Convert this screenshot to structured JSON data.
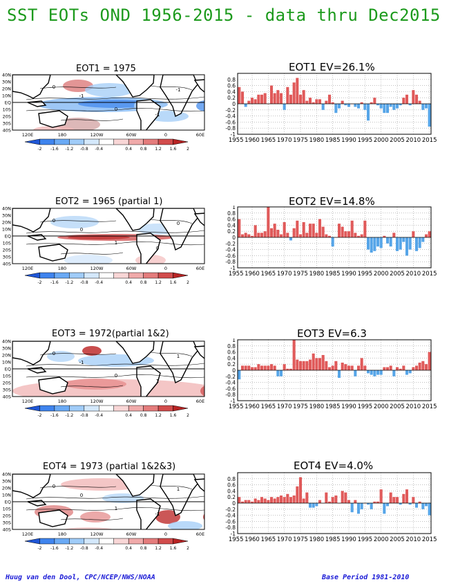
{
  "title": "SST EOTs OND 1956-2015 - data thru Dec2015",
  "footer_left": "Huug van den Dool, CPC/NCEP/NWS/NOAA",
  "footer_right": "Base Period 1981-2010",
  "colors": {
    "title": "#1c9a1c",
    "positive": "#e05a5a",
    "negative": "#56a5e8",
    "footer": "#1a1ad6",
    "colorbar": [
      "#1f56d6",
      "#3f84ee",
      "#6aaaf5",
      "#a0ccf8",
      "#d4e8fb",
      "#ffffff",
      "#f8d6d6",
      "#f0aaaa",
      "#e47c7c",
      "#d24c4c",
      "#b82424"
    ]
  },
  "map_lat_labels": [
    "40N",
    "30N",
    "20N",
    "10N",
    "EQ",
    "10S",
    "20S",
    "30S",
    "40S"
  ],
  "map_lon_labels": [
    "120E",
    "180",
    "120W",
    "60W",
    "0",
    "60E"
  ],
  "colorbar_labels": [
    "-2",
    "-1.6",
    "-1.2",
    "-0.8",
    "-0.4",
    "0.4",
    "0.8",
    "1.2",
    "1.6",
    "2"
  ],
  "panels": [
    {
      "map_title": "EOT1   = 1975",
      "bar_title": "EOT1   EV=26.1%",
      "contour_labels": [
        "-1",
        "0",
        "0",
        "-1",
        "-1"
      ],
      "chart_data": {
        "type": "bar",
        "title": "EOT1   EV=26.1%",
        "xlabels": [
          "1955",
          "1960",
          "1965",
          "1970",
          "1975",
          "1980",
          "1985",
          "1990",
          "1995",
          "2000",
          "2005",
          "2010",
          "2015"
        ],
        "ytick_labels": [
          "0.8",
          "0.6",
          "0.4",
          "0.2",
          "0",
          "-0.2",
          "-0.4",
          "-0.6",
          "-0.8",
          "-1"
        ],
        "ylim": [
          -1,
          1
        ],
        "x_start": 1956,
        "values": [
          0.55,
          0.4,
          -0.1,
          0.1,
          0.2,
          0.15,
          0.3,
          0.3,
          0.35,
          0.0,
          0.6,
          0.35,
          0.45,
          0.35,
          -0.2,
          0.55,
          0.3,
          0.7,
          0.85,
          0.3,
          0.45,
          0.1,
          0.2,
          0.05,
          0.15,
          0.15,
          -0.2,
          0.1,
          0.3,
          0.05,
          -0.3,
          -0.15,
          0.1,
          -0.05,
          -0.1,
          0.0,
          -0.1,
          -0.15,
          0.05,
          -0.2,
          -0.55,
          0.05,
          0.2,
          -0.05,
          -0.15,
          -0.3,
          -0.3,
          -0.1,
          -0.2,
          -0.15,
          -0.05,
          0.2,
          0.3,
          -0.05,
          0.45,
          0.3,
          0.1,
          -0.2,
          -0.15,
          -0.75
        ]
      }
    },
    {
      "map_title": "EOT2    = 1965 (partial 1)",
      "bar_title": "EOT2   EV=14.8%",
      "contour_labels": [
        "0",
        "1",
        "0",
        "0",
        "0"
      ],
      "chart_data": {
        "type": "bar",
        "title": "EOT2   EV=14.8%",
        "xlabels": [
          "1955",
          "1960",
          "1965",
          "1970",
          "1975",
          "1980",
          "1985",
          "1990",
          "1995",
          "2000",
          "2005",
          "2010",
          "2015"
        ],
        "ytick_labels": [
          "1",
          "0.8",
          "0.6",
          "0.4",
          "0.2",
          "0",
          "-0.2",
          "-0.4",
          "-0.6",
          "-0.8",
          "-1"
        ],
        "ylim": [
          -1,
          1
        ],
        "x_start": 1956,
        "values": [
          0.6,
          0.1,
          0.15,
          0.1,
          0.05,
          0.4,
          0.15,
          0.15,
          0.2,
          1.0,
          0.3,
          0.45,
          0.25,
          0.1,
          0.5,
          0.15,
          -0.1,
          0.3,
          0.55,
          0.1,
          0.5,
          0.15,
          0.45,
          0.45,
          0.15,
          0.6,
          0.35,
          0.1,
          0.05,
          -0.3,
          0.0,
          0.45,
          0.35,
          0.2,
          0.2,
          0.55,
          0.15,
          0.05,
          0.1,
          0.55,
          -0.4,
          -0.5,
          -0.45,
          -0.3,
          -0.35,
          0.05,
          -0.2,
          -0.3,
          0.15,
          -0.45,
          -0.4,
          -0.15,
          -0.6,
          -0.4,
          0.2,
          -0.45,
          -0.35,
          -0.15,
          0.1,
          0.2
        ]
      }
    },
    {
      "map_title": "EOT3    = 1972(partial 1&2)",
      "bar_title": "EOT3   EV=6.3",
      "contour_labels": [
        "-1",
        "0",
        "0",
        "1",
        "1"
      ],
      "chart_data": {
        "type": "bar",
        "title": "EOT3   EV=6.3",
        "xlabels": [
          "1955",
          "1960",
          "1965",
          "1970",
          "1975",
          "1980",
          "1985",
          "1990",
          "1995",
          "2000",
          "2005",
          "2010",
          "2015"
        ],
        "ytick_labels": [
          "1",
          "0.8",
          "0.6",
          "0.4",
          "0.2",
          "0",
          "-0.2",
          "-0.4",
          "-0.6",
          "-0.8",
          "-1"
        ],
        "ylim": [
          -1,
          1
        ],
        "x_start": 1956,
        "values": [
          -0.3,
          0.15,
          0.15,
          0.15,
          0.1,
          0.1,
          0.2,
          0.15,
          0.15,
          0.15,
          0.2,
          0.15,
          -0.2,
          -0.2,
          0.2,
          0.05,
          0.05,
          1.0,
          0.35,
          0.3,
          0.3,
          0.3,
          0.35,
          0.55,
          0.4,
          0.4,
          0.5,
          0.3,
          0.1,
          0.15,
          0.3,
          -0.25,
          0.25,
          0.2,
          0.15,
          0.15,
          -0.2,
          0.15,
          0.4,
          0.15,
          -0.1,
          -0.15,
          -0.2,
          -0.15,
          -0.15,
          0.1,
          0.1,
          0.15,
          -0.2,
          0.1,
          0.05,
          0.15,
          -0.15,
          -0.1,
          0.1,
          0.15,
          0.25,
          0.3,
          0.2,
          0.6
        ]
      }
    },
    {
      "map_title": "EOT4    = 1973 (partial 1&2&3)",
      "bar_title": "EOT4   EV=4.0%",
      "contour_labels": [
        "0",
        "1",
        "0",
        "-1",
        "1"
      ],
      "chart_data": {
        "type": "bar",
        "title": "EOT4   EV=4.0%",
        "xlabels": [
          "1955",
          "1960",
          "1965",
          "1970",
          "1975",
          "1980",
          "1985",
          "1990",
          "1995",
          "2000",
          "2005",
          "2010",
          "2015"
        ],
        "ytick_labels": [
          "0.8",
          "0.6",
          "0.4",
          "0.2",
          "0",
          "-0.2",
          "-0.4",
          "-0.6",
          "-0.8",
          "-1"
        ],
        "ylim": [
          -1,
          1
        ],
        "x_start": 1956,
        "values": [
          0.2,
          0.05,
          0.1,
          0.1,
          0.05,
          0.15,
          0.1,
          0.2,
          0.15,
          0.1,
          0.2,
          0.15,
          0.2,
          0.25,
          0.2,
          0.3,
          0.2,
          0.25,
          0.55,
          0.85,
          0.15,
          0.35,
          -0.15,
          -0.15,
          -0.1,
          0.1,
          0.0,
          0.35,
          0.05,
          0.2,
          0.25,
          0.0,
          0.4,
          0.35,
          0.1,
          -0.3,
          0.1,
          -0.35,
          -0.2,
          0.0,
          -0.05,
          -0.2,
          0.05,
          0.05,
          0.45,
          -0.35,
          -0.1,
          0.35,
          0.2,
          0.2,
          -0.05,
          0.3,
          0.45,
          -0.05,
          0.2,
          -0.15,
          0.05,
          -0.2,
          -0.1,
          -0.4
        ]
      }
    }
  ]
}
